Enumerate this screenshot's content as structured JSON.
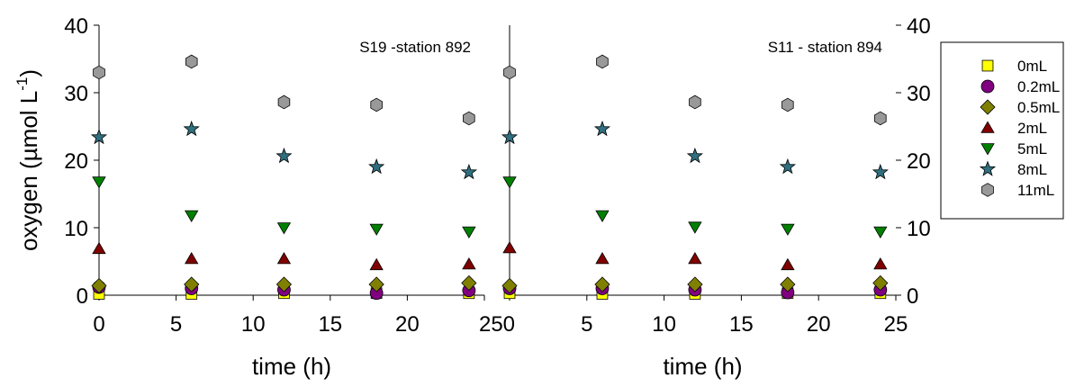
{
  "chart_data": {
    "type": "scatter",
    "ylabel": "oxygen (µmol L",
    "ylabel_sup": "-1",
    "ylabel_close": ")",
    "xlim": [
      0,
      25
    ],
    "ylim": [
      0,
      40
    ],
    "xticks": [
      "0",
      "5",
      "10",
      "15",
      "20",
      "25"
    ],
    "yticks": [
      "0",
      "10",
      "20",
      "30",
      "40"
    ],
    "x_tick_join_label": "250",
    "panels": [
      {
        "annotation": "S19 -station 892",
        "xlabel": "time (h)",
        "series": [
          {
            "name": "0mL",
            "marker": "square",
            "color": "#ffff00",
            "x": [
              0,
              6,
              12,
              18,
              24
            ],
            "y": [
              0.2,
              0.2,
              0.3,
              0.3,
              0.3
            ]
          },
          {
            "name": "0.2mL",
            "marker": "circle",
            "color": "#800080",
            "x": [
              0,
              6,
              12,
              18,
              24
            ],
            "y": [
              1.2,
              1.0,
              0.8,
              0.3,
              0.7
            ]
          },
          {
            "name": "0.5mL",
            "marker": "diamond",
            "color": "#808000",
            "x": [
              0,
              6,
              12,
              18,
              24
            ],
            "y": [
              1.4,
              1.6,
              1.6,
              1.6,
              1.8
            ]
          },
          {
            "name": "2mL",
            "marker": "triangle-up",
            "color": "#800000",
            "x": [
              0,
              6,
              12,
              18,
              24
            ],
            "y": [
              6.9,
              5.4,
              5.4,
              4.5,
              4.6
            ]
          },
          {
            "name": "5mL",
            "marker": "triangle-down",
            "color": "#008000",
            "x": [
              0,
              6,
              12,
              18,
              24
            ],
            "y": [
              16.8,
              11.8,
              10.0,
              9.8,
              9.4
            ]
          },
          {
            "name": "8mL",
            "marker": "star",
            "color": "#2f6f7f",
            "x": [
              0,
              6,
              12,
              18,
              24
            ],
            "y": [
              23.4,
              24.6,
              20.6,
              19.0,
              18.2
            ]
          },
          {
            "name": "11mL",
            "marker": "hexagon",
            "color": "#999999",
            "x": [
              0,
              6,
              12,
              18,
              24
            ],
            "y": [
              33.0,
              34.6,
              28.6,
              28.2,
              26.2
            ]
          }
        ]
      },
      {
        "annotation": "S11 - station 894",
        "xlabel": "time (h)",
        "series": [
          {
            "name": "0mL",
            "marker": "square",
            "color": "#ffff00",
            "x": [
              0,
              6,
              12,
              18,
              24
            ],
            "y": [
              0.3,
              0.2,
              0.2,
              0.3,
              0.3
            ]
          },
          {
            "name": "0.2mL",
            "marker": "circle",
            "color": "#800080",
            "x": [
              0,
              6,
              12,
              18,
              24
            ],
            "y": [
              1.0,
              1.0,
              0.8,
              0.4,
              0.8
            ]
          },
          {
            "name": "0.5mL",
            "marker": "diamond",
            "color": "#808000",
            "x": [
              0,
              6,
              12,
              18,
              24
            ],
            "y": [
              1.4,
              1.6,
              1.6,
              1.6,
              1.8
            ]
          },
          {
            "name": "2mL",
            "marker": "triangle-up",
            "color": "#800000",
            "x": [
              0,
              6,
              12,
              18,
              24
            ],
            "y": [
              7.0,
              5.4,
              5.4,
              4.5,
              4.6
            ]
          },
          {
            "name": "5mL",
            "marker": "triangle-down",
            "color": "#008000",
            "x": [
              0,
              6,
              12,
              18,
              24
            ],
            "y": [
              16.8,
              11.8,
              10.1,
              9.8,
              9.4
            ]
          },
          {
            "name": "8mL",
            "marker": "star",
            "color": "#2f6f7f",
            "x": [
              0,
              6,
              12,
              18,
              24
            ],
            "y": [
              23.4,
              24.6,
              20.6,
              19.0,
              18.2
            ]
          },
          {
            "name": "11mL",
            "marker": "hexagon",
            "color": "#999999",
            "x": [
              0,
              6,
              12,
              18,
              24
            ],
            "y": [
              33.0,
              34.6,
              28.6,
              28.2,
              26.2
            ]
          }
        ]
      }
    ],
    "legend": {
      "placement": "right",
      "entries": [
        {
          "label": "0mL",
          "marker": "square",
          "color": "#ffff00"
        },
        {
          "label": "0.2mL",
          "marker": "circle",
          "color": "#800080"
        },
        {
          "label": "0.5mL",
          "marker": "diamond",
          "color": "#808000"
        },
        {
          "label": "2mL",
          "marker": "triangle-up",
          "color": "#800000"
        },
        {
          "label": "5mL",
          "marker": "triangle-down",
          "color": "#008000"
        },
        {
          "label": "8mL",
          "marker": "star",
          "color": "#2f6f7f"
        },
        {
          "label": "11mL",
          "marker": "hexagon",
          "color": "#999999"
        }
      ]
    },
    "grid": false
  }
}
